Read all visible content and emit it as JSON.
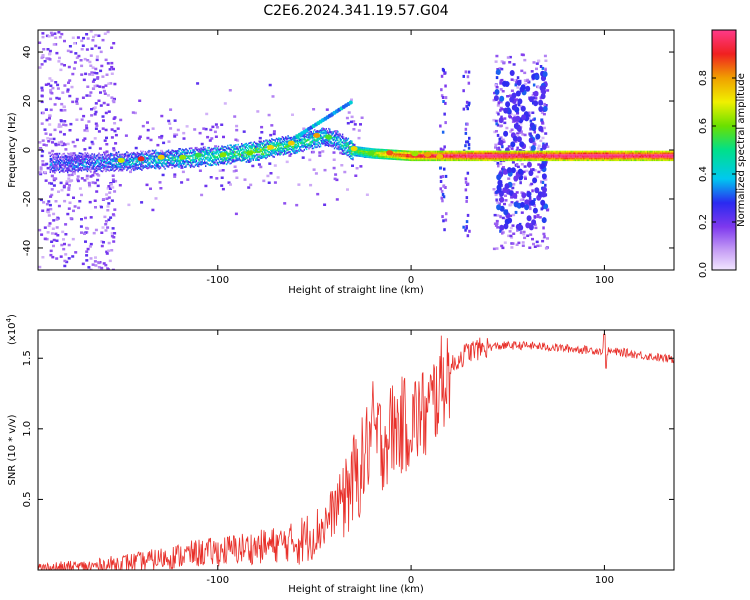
{
  "figure_title": "C2E6.2024.341.19.57.G04",
  "chart_data": [
    {
      "type": "heatmap",
      "xlabel": "Height of straight line (km)",
      "ylabel": "Frequency (Hz)",
      "xlim": [
        -193,
        136
      ],
      "ylim": [
        -49,
        49
      ],
      "x_ticks": [
        -100,
        0,
        100
      ],
      "y_ticks": [
        -40,
        -20,
        0,
        20,
        40
      ],
      "colorbar": {
        "label": "Normalized spectral amplitude",
        "range": [
          0.0,
          1.0
        ],
        "ticks": [
          "0.0",
          "0.2",
          "0.4",
          "0.6",
          "0.8"
        ],
        "tick_values": [
          0.0,
          0.2,
          0.4,
          0.6,
          0.8
        ]
      },
      "ridge": {
        "x": [
          -185,
          -160,
          -140,
          -120,
          -100,
          -80,
          -60,
          -45,
          -38,
          -30,
          -20,
          -10,
          0,
          20,
          40,
          60,
          80,
          100,
          120,
          136
        ],
        "y": [
          -5,
          -4.5,
          -4,
          -3,
          -2,
          0,
          3,
          6,
          4,
          0,
          -1,
          -1.5,
          -2,
          -2,
          -2,
          -2,
          -2,
          -2,
          -2,
          -2
        ],
        "amplitude": [
          0.25,
          0.3,
          0.35,
          0.4,
          0.45,
          0.5,
          0.45,
          0.4,
          0.35,
          0.5,
          0.6,
          0.75,
          0.85,
          0.9,
          0.95,
          0.9,
          0.95,
          0.95,
          0.9,
          0.95
        ]
      }
    },
    {
      "type": "line",
      "xlabel": "Height of straight line (km)",
      "ylabel": "SNR (10 * v/v)",
      "multiplier": "(x10",
      "multiplier_exponent": "4",
      "multiplier_close": ")",
      "xlim": [
        -193,
        136
      ],
      "ylim": [
        0,
        1.7
      ],
      "x_ticks": [
        -100,
        0,
        100
      ],
      "y_ticks": [
        "0.5",
        "1.0",
        "1.5"
      ],
      "y_tick_values": [
        0.5,
        1.0,
        1.5
      ],
      "series": [
        {
          "color": "#e8302a",
          "x": [
            -193,
            -180,
            -170,
            -160,
            -150,
            -140,
            -130,
            -120,
            -110,
            -100,
            -90,
            -80,
            -70,
            -60,
            -55,
            -50,
            -45,
            -40,
            -35,
            -30,
            -25,
            -22,
            -20,
            -18,
            -15,
            -12,
            -10,
            -5,
            0,
            5,
            8,
            10,
            15,
            20,
            25,
            30,
            40,
            50,
            60,
            70,
            80,
            90,
            100,
            110,
            120,
            136
          ],
          "y": [
            0.01,
            0.015,
            0.02,
            0.03,
            0.05,
            0.06,
            0.08,
            0.1,
            0.12,
            0.13,
            0.15,
            0.16,
            0.18,
            0.2,
            0.22,
            0.26,
            0.32,
            0.42,
            0.55,
            0.62,
            0.75,
            0.9,
            1.0,
            0.95,
            0.9,
            0.95,
            1.0,
            1.02,
            1.05,
            1.1,
            1.08,
            1.15,
            1.3,
            1.42,
            1.5,
            1.55,
            1.58,
            1.59,
            1.59,
            1.58,
            1.57,
            1.56,
            1.55,
            1.54,
            1.52,
            1.49
          ]
        }
      ]
    }
  ]
}
